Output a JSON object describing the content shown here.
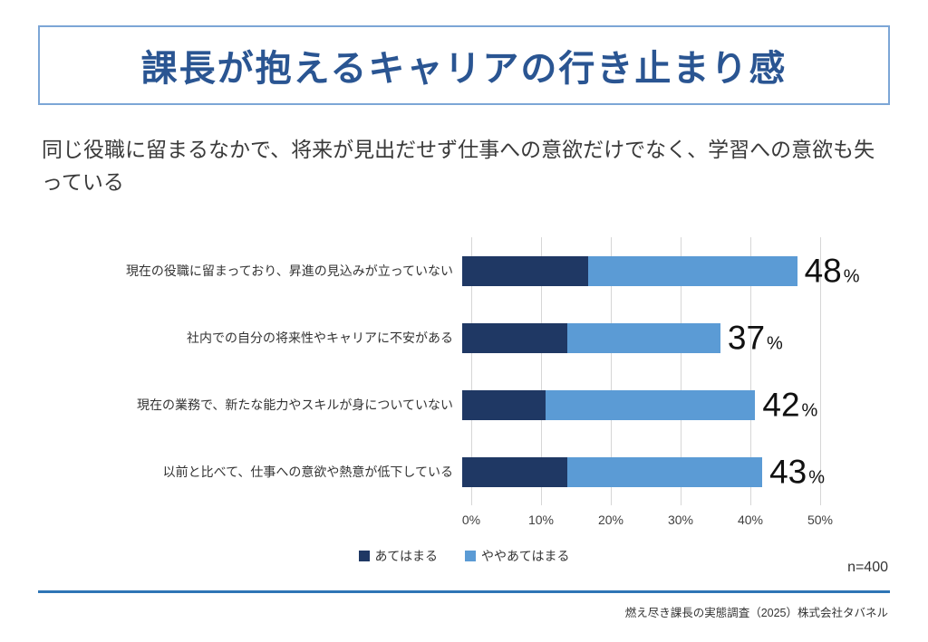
{
  "page": {
    "title": "課長が抱えるキャリアの行き止まり感",
    "subtitle": "同じ役職に留まるなかで、将来が見出だせず仕事への意欲だけでなく、学習への意欲も失っている",
    "sample_size": "n=400",
    "footer": "燃え尽き課長の実態調査（2025）株式会社タバネル"
  },
  "colors": {
    "title_text": "#2a5592",
    "title_border": "#7ca6d6",
    "series_dark": "#1f3864",
    "series_light": "#5b9bd5",
    "gridline": "#d6d6d6",
    "footer_rule": "#2e75b6"
  },
  "chart_data": {
    "type": "bar",
    "orientation": "horizontal",
    "stacked": true,
    "grid": true,
    "legend_position": "bottom",
    "categories": [
      "現在の役職に留まっており、昇進の見込みが立っていない",
      "社内での自分の将来性やキャリアに不安がある",
      "現在の業務で、新たな能力やスキルが身についていない",
      "以前と比べて、仕事への意欲や熱意が低下している"
    ],
    "series": [
      {
        "name": "あてはまる",
        "color": "#1f3864",
        "values": [
          18,
          15,
          12,
          15
        ]
      },
      {
        "name": "ややあてはまる",
        "color": "#5b9bd5",
        "values": [
          30,
          22,
          30,
          28
        ]
      }
    ],
    "totals": [
      48,
      37,
      42,
      43
    ],
    "unit": "%",
    "x_ticks": [
      "0%",
      "10%",
      "20%",
      "30%",
      "40%",
      "50%"
    ],
    "xlim": [
      0,
      50
    ],
    "xlabel": "",
    "ylabel": ""
  }
}
